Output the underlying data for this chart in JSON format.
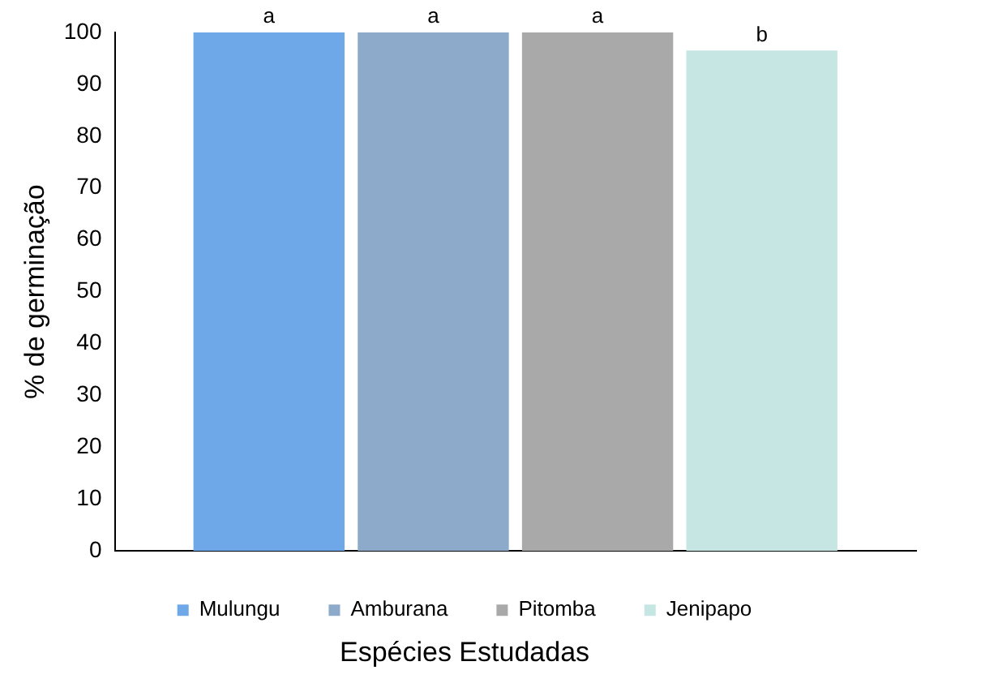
{
  "chart_data": {
    "type": "bar",
    "xlabel": "Espécies Estudadas",
    "ylabel": "% de germinação",
    "categories": [
      null
    ],
    "series": [
      {
        "name": "Mulungu",
        "color": "#6fa8e8",
        "values": [
          100
        ]
      },
      {
        "name": "Amburana",
        "color": "#8eaacb",
        "values": [
          100
        ]
      },
      {
        "name": "Pitomba",
        "color": "#a9a9a9",
        "values": [
          100
        ]
      },
      {
        "name": "Jenipapo",
        "color": "#c6e6e3",
        "values": [
          96.5
        ]
      }
    ],
    "annotations": [
      "a",
      "a",
      "a",
      "b"
    ],
    "ylim": [
      0,
      100
    ],
    "yticks": [
      0,
      10,
      20,
      30,
      40,
      50,
      60,
      70,
      80,
      90,
      100
    ],
    "grid": false,
    "legend": "bottom"
  }
}
